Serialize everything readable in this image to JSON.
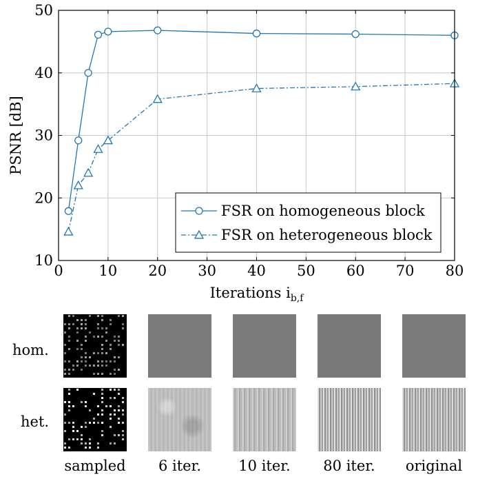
{
  "chart_data": {
    "type": "line",
    "xlabel": "Iterations i",
    "xlabel_sub": "b,f",
    "ylabel": "PSNR [dB]",
    "xlim": [
      0,
      80
    ],
    "ylim": [
      10,
      50
    ],
    "xticks": [
      0,
      10,
      20,
      30,
      40,
      50,
      60,
      70,
      80
    ],
    "yticks": [
      10,
      20,
      30,
      40,
      50
    ],
    "grid": true,
    "legend_position": "bottom-right",
    "color": "#1f77b4",
    "series": [
      {
        "name": "FSR on homogeneous block",
        "marker": "circle",
        "line": "solid",
        "x": [
          2,
          4,
          6,
          8,
          10,
          20,
          40,
          60,
          80
        ],
        "y": [
          17.9,
          29.2,
          40.0,
          46.1,
          46.6,
          46.8,
          46.3,
          46.2,
          46.0
        ]
      },
      {
        "name": "FSR on heterogeneous block",
        "marker": "triangle",
        "line": "dashdot",
        "x": [
          2,
          4,
          6,
          8,
          10,
          20,
          40,
          60,
          80
        ],
        "y": [
          14.6,
          22.0,
          24.0,
          27.8,
          29.2,
          35.8,
          37.5,
          37.8,
          38.3
        ]
      }
    ]
  },
  "grid_images": {
    "rows": [
      "hom.",
      "het."
    ],
    "columns": [
      "sampled",
      "6 iter.",
      "10 iter.",
      "80 iter.",
      "original"
    ]
  }
}
